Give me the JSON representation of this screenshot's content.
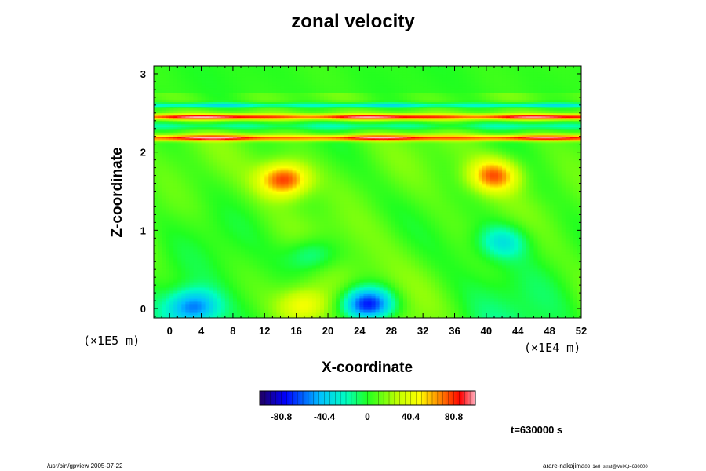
{
  "chart_data": {
    "type": "heatmap",
    "title": "zonal velocity",
    "xlabel": "X-coordinate",
    "ylabel": "Z-coordinate",
    "x_scale_note": "(×1E4 m)",
    "y_scale_note": "(×1E5 m)",
    "xlim": [
      -2,
      52
    ],
    "ylim": [
      -0.12,
      3.1
    ],
    "x_ticks": [
      0,
      4,
      8,
      12,
      16,
      20,
      24,
      28,
      32,
      36,
      40,
      44,
      48,
      52
    ],
    "y_ticks": [
      0,
      1,
      2,
      3
    ],
    "colorbar": {
      "ticks": [
        "-80.8",
        "-40.4",
        "0",
        "40.4",
        "80.8"
      ],
      "range": [
        -101,
        101
      ]
    },
    "features": [
      {
        "type": "band",
        "z": 2.45,
        "width": 0.035,
        "value": 90
      },
      {
        "type": "band",
        "z": 2.18,
        "width": 0.035,
        "value": 90
      },
      {
        "type": "band",
        "z": 2.6,
        "width": 0.03,
        "value": -40
      },
      {
        "type": "band",
        "z": 2.33,
        "width": 0.04,
        "value": -25
      },
      {
        "type": "blob",
        "x": 25,
        "z": 0.05,
        "value": -95
      },
      {
        "type": "blob",
        "x": 3,
        "z": 0.02,
        "value": -60
      },
      {
        "type": "blob",
        "x": 14.5,
        "z": 1.65,
        "value": 75
      },
      {
        "type": "blob",
        "x": 41,
        "z": 1.7,
        "value": 65
      },
      {
        "type": "blob",
        "x": 18,
        "z": 0.68,
        "value": -30
      },
      {
        "type": "blob",
        "x": 42,
        "z": 0.85,
        "value": -35
      },
      {
        "type": "blob",
        "x": 17,
        "z": 0.05,
        "value": 40
      }
    ]
  },
  "time_label": "t=630000 s",
  "footer": {
    "left": "/usr/bin/gpview 2005-07-22",
    "right_main": "arare-nakajima",
    "right_sub": "03_1e8_strat@VelX,t=630000"
  }
}
